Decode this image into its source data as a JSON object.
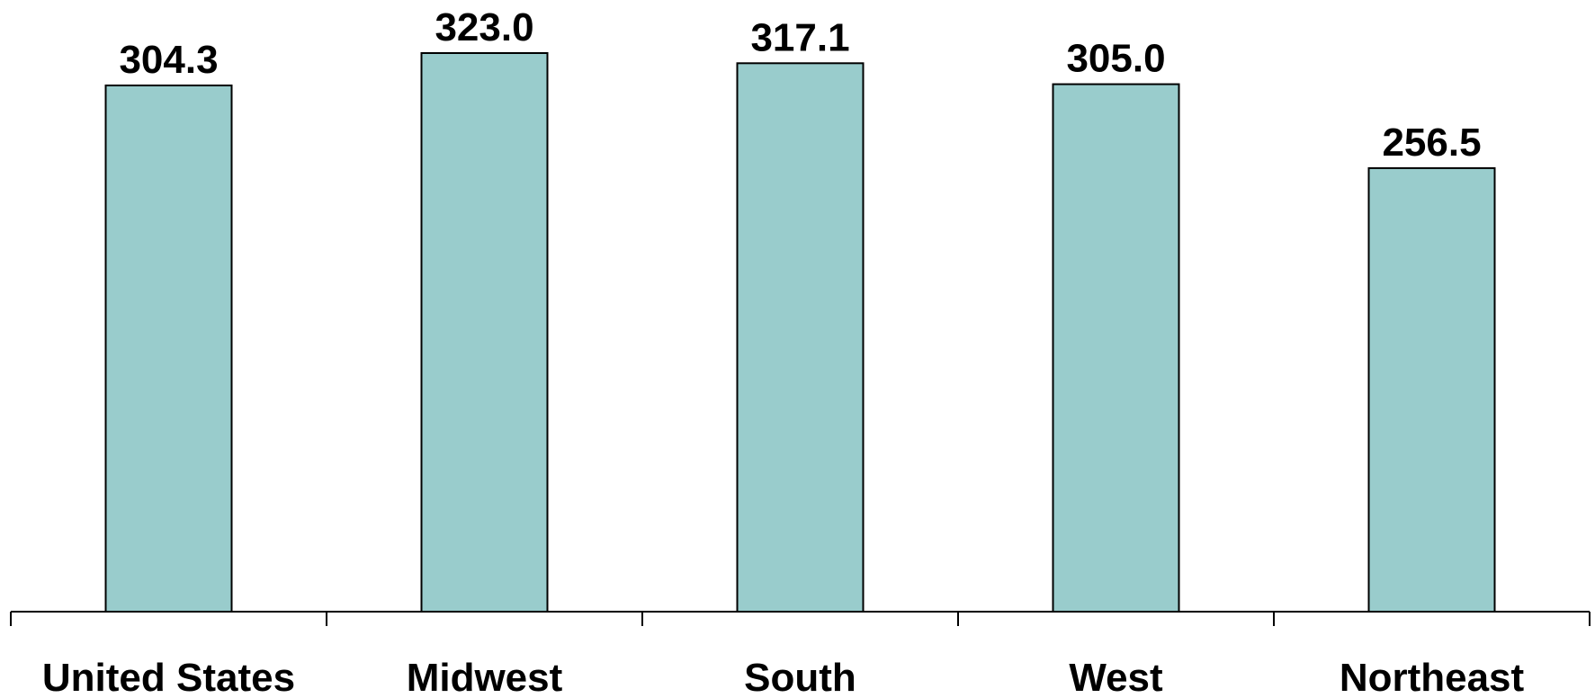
{
  "chart_data": {
    "type": "bar",
    "categories": [
      "United States",
      "Midwest",
      "South",
      "West",
      "Northeast"
    ],
    "values": [
      304.3,
      323.0,
      317.1,
      305.0,
      256.5
    ],
    "value_labels": [
      "304.3",
      "323.0",
      "317.1",
      "305.0",
      "256.5"
    ],
    "title": "",
    "xlabel": "",
    "ylabel": "",
    "ylim": [
      0,
      323.0
    ],
    "grid": false,
    "legend": "none"
  },
  "colors": {
    "bar_fill": "#99CCCC",
    "bar_stroke": "#000000",
    "text": "#000000"
  }
}
